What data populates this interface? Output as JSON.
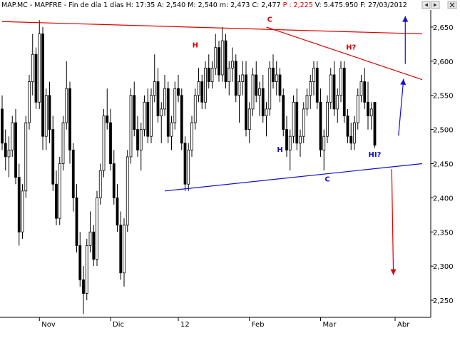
{
  "header": {
    "symbol": "MAP.MC",
    "name": "MAPFRE",
    "timeframe": "Fin de día 1 días",
    "fields": [
      {
        "k": "H:",
        "v": "17:35"
      },
      {
        "k": "A:",
        "v": "2,540"
      },
      {
        "k": "M:",
        "v": "2,540"
      },
      {
        "k": "m:",
        "v": "2,473"
      },
      {
        "k": "C:",
        "v": "2,477"
      },
      {
        "k": "P :",
        "v": "2,225",
        "color": "#e00000"
      },
      {
        "k": "V:",
        "v": "5.475.950"
      },
      {
        "k": "F:",
        "v": "27/03/2012"
      }
    ]
  },
  "window_buttons": {
    "left_icon": "scroll-left-icon",
    "right_icon": "scroll-right-icon",
    "close_icon": "close-icon"
  },
  "chart_data": {
    "type": "candlestick",
    "ylim": [
      2.225,
      2.675
    ],
    "yticks": [
      2.25,
      2.3,
      2.35,
      2.4,
      2.45,
      2.5,
      2.55,
      2.6,
      2.65
    ],
    "ytick_labels": [
      "2,250",
      "2,300",
      "2,350",
      "2,400",
      "2,450",
      "2,500",
      "2,550",
      "2,600",
      "2,650"
    ],
    "xlabels": [
      {
        "label": "Nov",
        "index": 11
      },
      {
        "label": "Dic",
        "index": 32
      },
      {
        "label": "12",
        "index": 52
      },
      {
        "label": "Feb",
        "index": 73
      },
      {
        "label": "Mar",
        "index": 94
      },
      {
        "label": "Abr",
        "index": 116
      }
    ],
    "candles": [
      [
        2.53,
        2.55,
        2.47,
        2.48
      ],
      [
        2.48,
        2.5,
        2.44,
        2.46
      ],
      [
        2.46,
        2.49,
        2.43,
        2.47
      ],
      [
        2.47,
        2.52,
        2.46,
        2.51
      ],
      [
        2.51,
        2.53,
        2.42,
        2.43
      ],
      [
        2.43,
        2.45,
        2.33,
        2.35
      ],
      [
        2.35,
        2.42,
        2.34,
        2.41
      ],
      [
        2.41,
        2.52,
        2.4,
        2.51
      ],
      [
        2.51,
        2.58,
        2.5,
        2.57
      ],
      [
        2.57,
        2.64,
        2.55,
        2.61
      ],
      [
        2.61,
        2.62,
        2.53,
        2.54
      ],
      [
        2.54,
        2.66,
        2.53,
        2.64
      ],
      [
        2.64,
        2.65,
        2.47,
        2.49
      ],
      [
        2.49,
        2.56,
        2.47,
        2.55
      ],
      [
        2.55,
        2.57,
        2.48,
        2.5
      ],
      [
        2.5,
        2.52,
        2.41,
        2.42
      ],
      [
        2.42,
        2.44,
        2.36,
        2.37
      ],
      [
        2.37,
        2.46,
        2.36,
        2.45
      ],
      [
        2.45,
        2.52,
        2.44,
        2.51
      ],
      [
        2.51,
        2.6,
        2.5,
        2.56
      ],
      [
        2.56,
        2.57,
        2.45,
        2.47
      ],
      [
        2.47,
        2.48,
        2.38,
        2.4
      ],
      [
        2.4,
        2.42,
        2.32,
        2.33
      ],
      [
        2.33,
        2.35,
        2.27,
        2.28
      ],
      [
        2.28,
        2.3,
        2.23,
        2.26
      ],
      [
        2.26,
        2.34,
        2.25,
        2.33
      ],
      [
        2.33,
        2.38,
        2.32,
        2.35
      ],
      [
        2.35,
        2.36,
        2.3,
        2.31
      ],
      [
        2.31,
        2.41,
        2.3,
        2.4
      ],
      [
        2.4,
        2.45,
        2.39,
        2.44
      ],
      [
        2.44,
        2.53,
        2.43,
        2.52
      ],
      [
        2.52,
        2.56,
        2.5,
        2.51
      ],
      [
        2.51,
        2.53,
        2.44,
        2.45
      ],
      [
        2.45,
        2.47,
        2.39,
        2.4
      ],
      [
        2.4,
        2.42,
        2.35,
        2.36
      ],
      [
        2.36,
        2.38,
        2.28,
        2.29
      ],
      [
        2.29,
        2.37,
        2.27,
        2.36
      ],
      [
        2.36,
        2.47,
        2.35,
        2.46
      ],
      [
        2.46,
        2.56,
        2.45,
        2.55
      ],
      [
        2.55,
        2.57,
        2.49,
        2.5
      ],
      [
        2.5,
        2.52,
        2.46,
        2.47
      ],
      [
        2.47,
        2.51,
        2.44,
        2.5
      ],
      [
        2.5,
        2.55,
        2.49,
        2.54
      ],
      [
        2.54,
        2.56,
        2.48,
        2.49
      ],
      [
        2.49,
        2.56,
        2.48,
        2.55
      ],
      [
        2.55,
        2.61,
        2.54,
        2.57
      ],
      [
        2.57,
        2.59,
        2.51,
        2.52
      ],
      [
        2.52,
        2.54,
        2.48,
        2.53
      ],
      [
        2.53,
        2.58,
        2.52,
        2.56
      ],
      [
        2.56,
        2.57,
        2.48,
        2.49
      ],
      [
        2.49,
        2.52,
        2.47,
        2.51
      ],
      [
        2.51,
        2.57,
        2.5,
        2.56
      ],
      [
        2.56,
        2.58,
        2.54,
        2.55
      ],
      [
        2.55,
        2.56,
        2.47,
        2.48
      ],
      [
        2.48,
        2.49,
        2.41,
        2.42
      ],
      [
        2.42,
        2.48,
        2.41,
        2.47
      ],
      [
        2.47,
        2.52,
        2.46,
        2.51
      ],
      [
        2.51,
        2.56,
        2.5,
        2.55
      ],
      [
        2.55,
        2.59,
        2.54,
        2.57
      ],
      [
        2.57,
        2.58,
        2.53,
        2.54
      ],
      [
        2.54,
        2.6,
        2.53,
        2.59
      ],
      [
        2.59,
        2.61,
        2.56,
        2.57
      ],
      [
        2.57,
        2.6,
        2.56,
        2.59
      ],
      [
        2.59,
        2.64,
        2.58,
        2.62
      ],
      [
        2.62,
        2.63,
        2.57,
        2.58
      ],
      [
        2.58,
        2.65,
        2.57,
        2.63
      ],
      [
        2.63,
        2.64,
        2.56,
        2.57
      ],
      [
        2.57,
        2.6,
        2.55,
        2.59
      ],
      [
        2.59,
        2.62,
        2.57,
        2.6
      ],
      [
        2.6,
        2.61,
        2.54,
        2.55
      ],
      [
        2.55,
        2.58,
        2.51,
        2.57
      ],
      [
        2.57,
        2.6,
        2.55,
        2.58
      ],
      [
        2.58,
        2.6,
        2.49,
        2.5
      ],
      [
        2.5,
        2.54,
        2.48,
        2.53
      ],
      [
        2.53,
        2.59,
        2.52,
        2.58
      ],
      [
        2.58,
        2.6,
        2.54,
        2.55
      ],
      [
        2.55,
        2.57,
        2.52,
        2.56
      ],
      [
        2.56,
        2.58,
        2.51,
        2.52
      ],
      [
        2.52,
        2.54,
        2.49,
        2.53
      ],
      [
        2.53,
        2.6,
        2.52,
        2.59
      ],
      [
        2.59,
        2.61,
        2.56,
        2.57
      ],
      [
        2.57,
        2.6,
        2.55,
        2.58
      ],
      [
        2.58,
        2.59,
        2.54,
        2.55
      ],
      [
        2.55,
        2.56,
        2.49,
        2.5
      ],
      [
        2.5,
        2.52,
        2.46,
        2.47
      ],
      [
        2.47,
        2.5,
        2.44,
        2.49
      ],
      [
        2.49,
        2.55,
        2.48,
        2.54
      ],
      [
        2.54,
        2.56,
        2.47,
        2.48
      ],
      [
        2.48,
        2.5,
        2.46,
        2.49
      ],
      [
        2.49,
        2.54,
        2.48,
        2.53
      ],
      [
        2.53,
        2.56,
        2.52,
        2.55
      ],
      [
        2.55,
        2.58,
        2.53,
        2.57
      ],
      [
        2.57,
        2.6,
        2.55,
        2.59
      ],
      [
        2.59,
        2.6,
        2.53,
        2.54
      ],
      [
        2.54,
        2.56,
        2.46,
        2.47
      ],
      [
        2.47,
        2.5,
        2.44,
        2.49
      ],
      [
        2.49,
        2.55,
        2.48,
        2.54
      ],
      [
        2.54,
        2.59,
        2.53,
        2.58
      ],
      [
        2.58,
        2.6,
        2.52,
        2.53
      ],
      [
        2.53,
        2.56,
        2.51,
        2.55
      ],
      [
        2.55,
        2.6,
        2.54,
        2.59
      ],
      [
        2.59,
        2.6,
        2.51,
        2.52
      ],
      [
        2.52,
        2.53,
        2.48,
        2.49
      ],
      [
        2.49,
        2.51,
        2.47,
        2.48
      ],
      [
        2.48,
        2.52,
        2.47,
        2.51
      ],
      [
        2.51,
        2.56,
        2.5,
        2.55
      ],
      [
        2.55,
        2.58,
        2.54,
        2.57
      ],
      [
        2.57,
        2.59,
        2.53,
        2.54
      ],
      [
        2.54,
        2.57,
        2.5,
        2.52
      ],
      [
        2.52,
        2.54,
        2.5,
        2.53
      ],
      [
        2.54,
        2.54,
        2.473,
        2.477
      ]
    ],
    "trendlines": [
      {
        "name": "upper-resistance",
        "color": "#e00000",
        "p1": [
          0,
          2.658
        ],
        "p2": [
          124,
          2.64
        ]
      },
      {
        "name": "descending-resistance",
        "color": "#e00000",
        "p1": [
          78,
          2.65
        ],
        "p2": [
          124,
          2.573
        ]
      },
      {
        "name": "support",
        "color": "#1010d0",
        "p1": [
          48,
          2.41
        ],
        "p2": [
          124,
          2.45
        ]
      }
    ],
    "annotations": [
      {
        "text": "C",
        "color": "#e00000",
        "x": 79,
        "y": 2.658
      },
      {
        "text": "H",
        "color": "#e00000",
        "x": 57,
        "y": 2.62
      },
      {
        "text": "H?",
        "color": "#e00000",
        "x": 103,
        "y": 2.617
      },
      {
        "text": "H",
        "color": "#1010d0",
        "x": 82,
        "y": 2.467
      },
      {
        "text": "C",
        "color": "#1010d0",
        "x": 96,
        "y": 2.424
      },
      {
        "text": "HI?",
        "color": "#1010d0",
        "x": 110,
        "y": 2.46
      }
    ],
    "arrows": [
      {
        "name": "target-up-arrow",
        "color": "#1010d0",
        "from": [
          117,
          2.491
        ],
        "to": [
          118.5,
          2.574
        ]
      },
      {
        "name": "breakout-up-arrow",
        "color": "#1010d0",
        "from": [
          119,
          2.596
        ],
        "to": [
          119,
          2.666
        ]
      },
      {
        "name": "breakdown-down-arrow",
        "color": "#e00000",
        "from": [
          115,
          2.442
        ],
        "to": [
          115.5,
          2.287
        ]
      }
    ]
  }
}
